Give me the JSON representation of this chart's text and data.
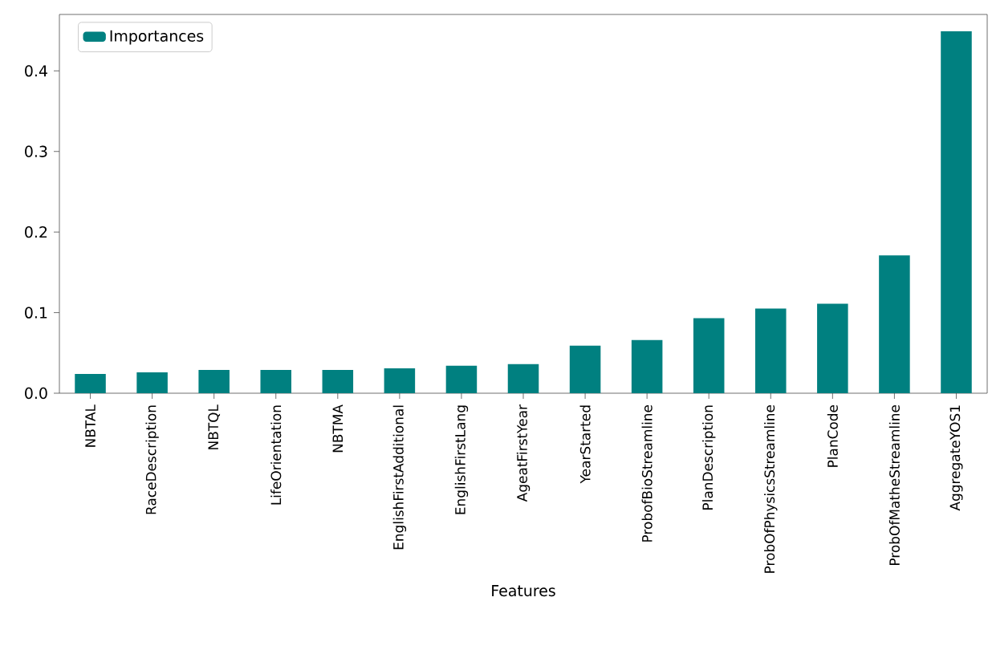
{
  "chart_data": {
    "type": "bar",
    "xlabel": "Features",
    "categories": [
      "NBTAL",
      "RaceDescription",
      "NBTQL",
      "LifeOrientation",
      "NBTMA",
      "EnglishFirstAdditional",
      "EnglishFirstLang",
      "AgeatFirstYear",
      "YearStarted",
      "ProbofBioStreamline",
      "PlanDescription",
      "ProbOfPhysicsStreamline",
      "PlanCode",
      "ProbOfMatheStreamline",
      "AggregateYOS1"
    ],
    "series": [
      {
        "name": "Importances",
        "color": "#008080",
        "values": [
          0.024,
          0.026,
          0.029,
          0.029,
          0.029,
          0.031,
          0.034,
          0.036,
          0.059,
          0.066,
          0.093,
          0.105,
          0.111,
          0.171,
          0.449
        ]
      }
    ],
    "ylim": [
      0,
      0.47
    ],
    "yticks": [
      {
        "value": 0,
        "label": "0.0"
      },
      0.1,
      0.2,
      0.3,
      0.4
    ],
    "legend": "top left",
    "grid": false
  }
}
